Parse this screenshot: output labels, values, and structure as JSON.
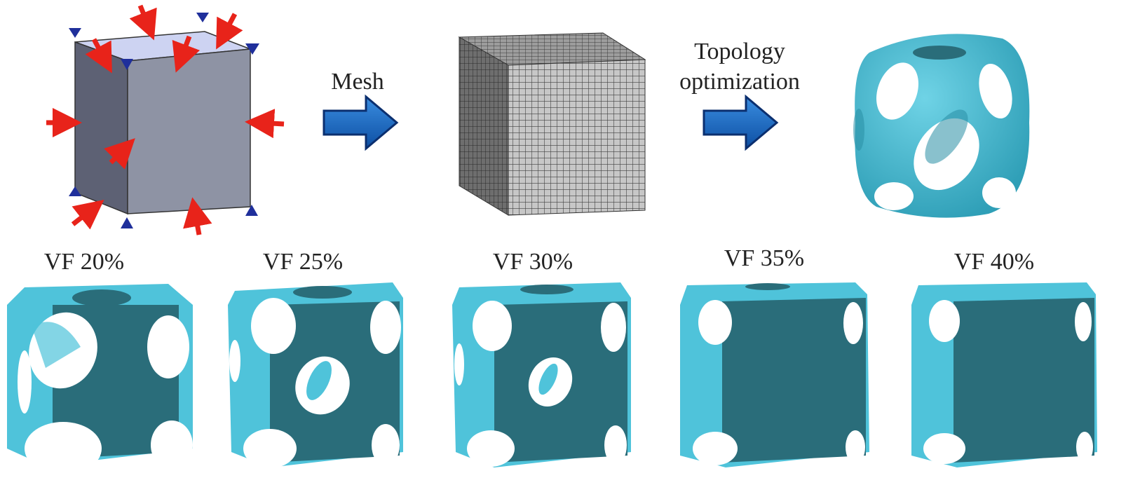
{
  "steps": {
    "mesh_label": "Mesh",
    "topology_label_line1": "Topology",
    "topology_label_line2": "optimization"
  },
  "variants": [
    {
      "label": "VF 20%",
      "volume_fraction": 20
    },
    {
      "label": "VF 25%",
      "volume_fraction": 25
    },
    {
      "label": "VF 30%",
      "volume_fraction": 30
    },
    {
      "label": "VF 35%",
      "volume_fraction": 35
    },
    {
      "label": "VF 40%",
      "volume_fraction": 40
    }
  ],
  "colors": {
    "load_arrow": "#e8231a",
    "support_marker": "#1f2f9b",
    "process_arrow": "#1565c0",
    "cube_face_front": "#8e93a4",
    "cube_face_side": "#5d6174",
    "cube_face_top": "#cdd3f2",
    "lattice_light": "#4fc3da",
    "lattice_dark": "#2a6d7a"
  },
  "icons": {
    "load": "red-arrow-icon",
    "support": "blue-triangle-icon",
    "process": "blue-block-arrow-icon"
  }
}
